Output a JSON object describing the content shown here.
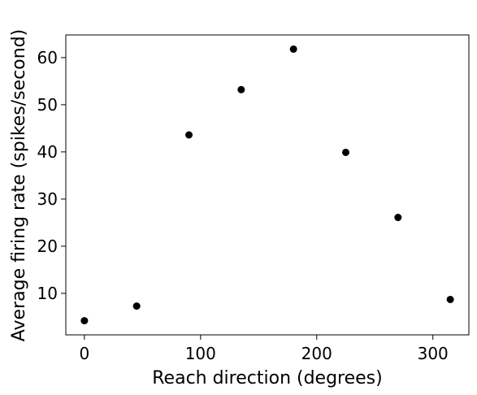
{
  "chart_data": {
    "type": "scatter",
    "title": "",
    "xlabel": "Reach direction (degrees)",
    "ylabel": "Average firing rate (spikes/second)",
    "xlim": [
      -16,
      331
    ],
    "ylim": [
      1.2,
      64.8
    ],
    "xticks": [
      0,
      100,
      200,
      300
    ],
    "yticks": [
      10,
      20,
      30,
      40,
      50,
      60
    ],
    "grid": false,
    "legend": "none",
    "marker_color": "#000000",
    "series": [
      {
        "x": [
          0,
          45,
          90,
          135,
          180,
          225,
          270,
          315
        ],
        "y": [
          4.2,
          7.3,
          43.6,
          53.2,
          61.8,
          39.9,
          26.1,
          8.7
        ]
      }
    ]
  }
}
